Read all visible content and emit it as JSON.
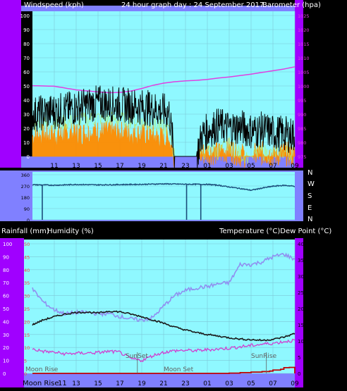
{
  "header": {
    "left_title": "Windspeed (kph)",
    "center_title": "24 hour graph day : 24 September 2017",
    "right_title": "Barometer (hpa)"
  },
  "colors": {
    "panel_bg": "#8080ff",
    "plot_bg": "#8ff8ff",
    "frame": "#a000ff",
    "grid": "#7cc8d8",
    "wind_avg": "#ff8c00",
    "wind_gust": "#000000",
    "wind_light": "#b0f070",
    "barometer": "#e040e0",
    "direction": "#1a4d7a",
    "temperature": "#1a1a1a",
    "dew_point": "#d040d0",
    "humidity": "#9090f0",
    "rainfall": "#c00000",
    "sun_moon_marker": "#606060"
  },
  "x_ticks": [
    "11",
    "13",
    "15",
    "17",
    "19",
    "21",
    "23",
    "01",
    "03",
    "05",
    "07",
    "09"
  ],
  "direction_labels": [
    "N",
    "W",
    "S",
    "E",
    "N"
  ],
  "bottom": {
    "left_label_1": "Rainfall (mm)",
    "left_label_2": "Humidity (%)",
    "right_label": "Temperature (°C)Dew Point (°C)",
    "moon_rise_axis": "Moon Rise",
    "moon_rise_tick": "11",
    "moon_rise_note": "Moon Rise",
    "sun_set": "SunSet",
    "moon_set": "Moon Set",
    "sun_rise": "SunRise"
  },
  "chart_data": [
    {
      "type": "line",
      "panel": "wind_barometer",
      "x_range": [
        "09:00",
        "09:00 +1 day"
      ],
      "y_left": {
        "label": "Windspeed (kph)",
        "range": [
          0,
          100
        ],
        "ticks": [
          "0",
          "10",
          "20",
          "30",
          "40",
          "50",
          "60",
          "70",
          "80",
          "90",
          "100"
        ]
      },
      "y_right": {
        "label": "Barometer (hpa)",
        "range": [
          975,
          1025
        ],
        "ticks": [
          "975",
          "980",
          "985",
          "990",
          "995",
          "1000",
          "1005",
          "1010",
          "1015",
          "1020",
          "1025"
        ]
      },
      "grid": true,
      "series": [
        {
          "name": "Barometer",
          "axis": "right",
          "t": [
            9,
            11,
            13,
            15,
            16,
            17,
            18,
            19,
            20,
            21,
            22,
            23,
            24,
            25,
            26,
            27,
            28,
            29,
            30,
            31,
            32,
            33
          ],
          "values": [
            1000.1,
            999.9,
            998.6,
            997.9,
            997.6,
            997.7,
            998.2,
            999.1,
            1000.2,
            1001.0,
            1001.5,
            1001.8,
            1002.0,
            1002.3,
            1002.8,
            1003.2,
            1003.7,
            1004.2,
            1004.8,
            1005.4,
            1006.0,
            1006.8
          ]
        },
        {
          "name": "Gust",
          "axis": "left",
          "t": [
            9,
            12,
            15,
            18,
            20,
            21.5,
            22,
            23,
            24,
            24.5,
            25,
            26,
            27,
            28,
            29,
            30,
            31,
            32,
            33
          ],
          "values": [
            30,
            33,
            38,
            36,
            34,
            31,
            0,
            0,
            0,
            15,
            18,
            22,
            20,
            21,
            18,
            19,
            17,
            16,
            15
          ]
        },
        {
          "name": "Average",
          "axis": "left",
          "t": [
            9,
            12,
            15,
            18,
            20,
            21.5,
            22,
            23,
            24,
            25,
            26,
            27,
            28,
            29,
            30,
            31,
            32,
            33
          ],
          "values": [
            14,
            15,
            17,
            16,
            14,
            12,
            0,
            0,
            0,
            3,
            2,
            5,
            1,
            0,
            2,
            1,
            2,
            1
          ]
        }
      ]
    },
    {
      "type": "line",
      "panel": "wind_direction",
      "y_left": {
        "range": [
          0,
          360
        ],
        "ticks": [
          "0",
          "90",
          "180",
          "270",
          "360"
        ]
      },
      "series": [
        {
          "name": "Direction",
          "t": [
            9,
            11,
            13,
            15,
            17,
            19,
            21,
            23,
            25,
            26,
            27,
            28,
            29,
            30,
            31,
            32,
            33
          ],
          "values": [
            280,
            276,
            282,
            279,
            281,
            283,
            287,
            284,
            283,
            276,
            262,
            250,
            236,
            253,
            268,
            275,
            268
          ]
        }
      ]
    },
    {
      "type": "line",
      "panel": "temp_humidity_rain",
      "y_left": {
        "label": "Humidity (%)",
        "range": [
          0,
          100
        ],
        "ticks": [
          "0",
          "10",
          "20",
          "30",
          "40",
          "50",
          "60",
          "70",
          "80",
          "90",
          "100"
        ]
      },
      "y_left_inner": {
        "label": "Rainfall (mm)",
        "range": [
          0,
          50
        ],
        "ticks": [
          "0",
          "5",
          "10",
          "15",
          "20",
          "25",
          "30",
          "35",
          "40",
          "45",
          "50"
        ]
      },
      "y_right": {
        "label": "Temperature (°C)",
        "range": [
          0,
          40
        ],
        "ticks": [
          "0",
          "5",
          "10",
          "15",
          "20",
          "25",
          "30",
          "35",
          "40"
        ]
      },
      "grid": true,
      "series": [
        {
          "name": "Humidity",
          "axis": "left",
          "t": [
            9,
            10,
            11,
            12,
            13,
            14,
            15,
            16,
            17,
            18,
            19,
            20,
            21,
            22,
            23,
            24,
            25,
            26,
            27,
            28,
            29,
            30,
            31,
            32,
            33
          ],
          "values": [
            65,
            55,
            49,
            46,
            47,
            47,
            46,
            46,
            44,
            42,
            41,
            43,
            52,
            60,
            64,
            66,
            67,
            69,
            70,
            84,
            84,
            86,
            90,
            92,
            88
          ]
        },
        {
          "name": "Temperature",
          "axis": "right",
          "t": [
            9,
            10,
            11,
            12,
            13,
            14,
            15,
            16,
            17,
            18,
            19,
            20,
            21,
            22,
            23,
            24,
            25,
            26,
            27,
            28,
            29,
            30,
            31,
            32,
            33
          ],
          "values": [
            15.0,
            16.5,
            17.5,
            18.3,
            18.8,
            18.9,
            18.6,
            19.2,
            19.0,
            18.3,
            17.5,
            16.5,
            15.5,
            14.3,
            13.4,
            12.6,
            12.0,
            11.5,
            11.0,
            10.6,
            10.4,
            10.2,
            10.5,
            11.2,
            12.3
          ]
        },
        {
          "name": "Dew Point",
          "axis": "right",
          "t": [
            9,
            10,
            11,
            12,
            13,
            14,
            15,
            16,
            17,
            18,
            19,
            20,
            21,
            22,
            23,
            24,
            25,
            26,
            27,
            28,
            29,
            30,
            31,
            32,
            33
          ],
          "values": [
            7.5,
            6.8,
            6.5,
            6.0,
            6.2,
            6.3,
            6.4,
            6.8,
            6.5,
            4.5,
            4.0,
            5.5,
            6.5,
            7.0,
            7.1,
            7.0,
            7.3,
            7.5,
            7.8,
            8.2,
            8.6,
            9.0,
            9.3,
            9.8,
            10.2
          ]
        },
        {
          "name": "Rainfall",
          "axis": "left_inner",
          "t": [
            9,
            26,
            27,
            28,
            29,
            30,
            30.7,
            31,
            31.7,
            32,
            32.5,
            33
          ],
          "values": [
            0,
            0,
            0.1,
            0.3,
            0.5,
            0.7,
            0.9,
            1.3,
            1.6,
            2.2,
            2.3,
            0
          ]
        }
      ]
    }
  ]
}
